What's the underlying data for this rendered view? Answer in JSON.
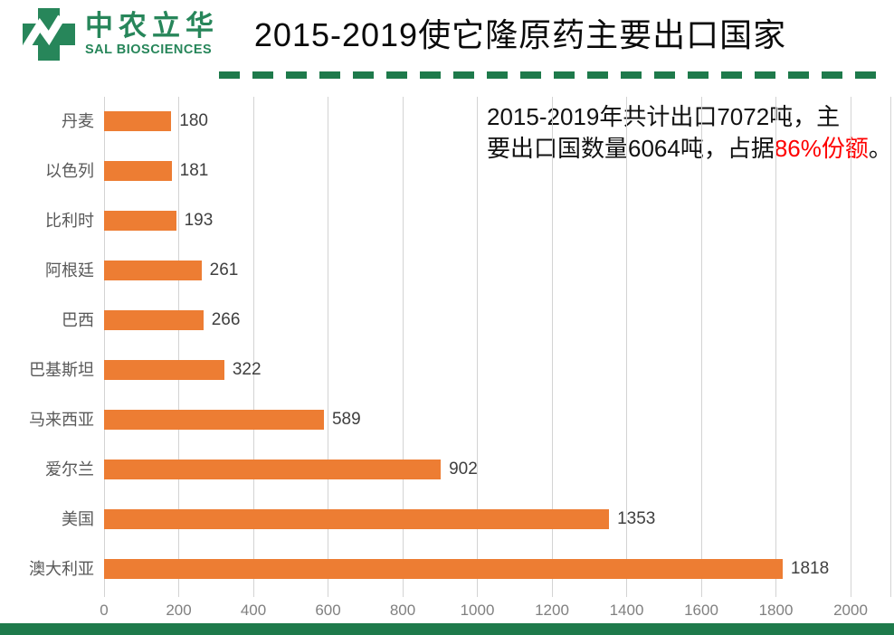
{
  "colors": {
    "brand_green": "#27865A",
    "accent_green": "#1E7A4B",
    "bar_orange": "#ED7D33",
    "highlight_red": "#FE0000",
    "gridline": "#D3D3D3"
  },
  "header": {
    "logo_cn": "中农立华",
    "logo_en": "SAL BIOSCIENCES",
    "title": "2015-2019使它隆原药主要出口国家"
  },
  "annotation": {
    "line1": "2015-2019年共计出口7072吨，主",
    "line2_plain": "要出口国数量6064吨，占据",
    "line2_highlight": "86%份额",
    "line2_end": "。"
  },
  "chart_data": {
    "type": "bar",
    "orientation": "horizontal",
    "title": "2015-2019使它隆原药主要出口国家",
    "categories": [
      "丹麦",
      "以色列",
      "比利时",
      "阿根廷",
      "巴西",
      "巴基斯坦",
      "马来西亚",
      "爱尔兰",
      "美国",
      "澳大利亚"
    ],
    "values": [
      180,
      181,
      193,
      261,
      266,
      322,
      589,
      902,
      1353,
      1818
    ],
    "xlabel": "",
    "ylabel": "",
    "xlim": [
      0,
      2000
    ],
    "xticks": [
      0,
      200,
      400,
      600,
      800,
      1000,
      1200,
      1400,
      1600,
      1800,
      2000
    ],
    "grid": "vertical",
    "value_labels": true,
    "legend": "none"
  }
}
